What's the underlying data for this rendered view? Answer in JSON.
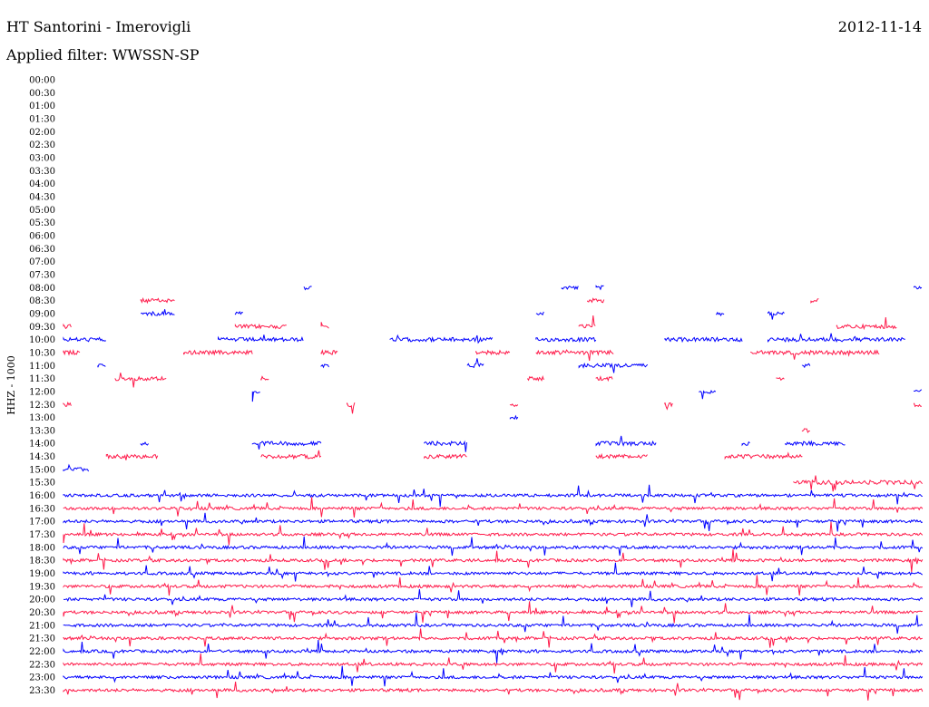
{
  "header": {
    "station": "HT Santorini - Imerovigli",
    "date": "2012-11-14",
    "filter_text": "Applied filter: WWSSN-SP"
  },
  "chart_data": {
    "type": "helicorder",
    "title": "HT Santorini - Imerovigli",
    "date": "2012-11-14",
    "filter": "WWSSN-SP",
    "ylabel": "HHZ - 1000",
    "colors": [
      "#0000ff",
      "#ff1a4a"
    ],
    "rows": [
      {
        "label": "00:00",
        "active": false
      },
      {
        "label": "00:30",
        "active": false
      },
      {
        "label": "01:00",
        "active": false
      },
      {
        "label": "01:30",
        "active": false
      },
      {
        "label": "02:00",
        "active": false
      },
      {
        "label": "02:30",
        "active": false
      },
      {
        "label": "03:00",
        "active": false
      },
      {
        "label": "03:30",
        "active": false
      },
      {
        "label": "04:00",
        "active": false
      },
      {
        "label": "04:30",
        "active": false
      },
      {
        "label": "05:00",
        "active": false
      },
      {
        "label": "05:30",
        "active": false
      },
      {
        "label": "06:00",
        "active": false
      },
      {
        "label": "06:30",
        "active": false
      },
      {
        "label": "07:00",
        "active": false
      },
      {
        "label": "07:30",
        "active": false
      },
      {
        "label": "08:00",
        "active": "sparse",
        "segments": [
          [
            0.28,
            0.29
          ],
          [
            0.58,
            0.6
          ],
          [
            0.62,
            0.63
          ],
          [
            0.99,
            1.0
          ]
        ]
      },
      {
        "label": "08:30",
        "active": "sparse",
        "segments": [
          [
            0.09,
            0.13
          ],
          [
            0.61,
            0.63
          ],
          [
            0.87,
            0.88
          ]
        ]
      },
      {
        "label": "09:00",
        "active": "sparse",
        "segments": [
          [
            0.09,
            0.13
          ],
          [
            0.2,
            0.21
          ],
          [
            0.55,
            0.56
          ],
          [
            0.76,
            0.77
          ],
          [
            0.82,
            0.84
          ]
        ]
      },
      {
        "label": "09:30",
        "active": "sparse",
        "segments": [
          [
            0.0,
            0.01
          ],
          [
            0.2,
            0.26
          ],
          [
            0.3,
            0.31
          ],
          [
            0.6,
            0.62
          ],
          [
            0.9,
            0.97
          ]
        ]
      },
      {
        "label": "10:00",
        "active": "sparse",
        "segments": [
          [
            0.0,
            0.05
          ],
          [
            0.18,
            0.28
          ],
          [
            0.38,
            0.5
          ],
          [
            0.55,
            0.62
          ],
          [
            0.7,
            0.79
          ],
          [
            0.82,
            0.98
          ]
        ]
      },
      {
        "label": "10:30",
        "active": "sparse",
        "segments": [
          [
            0.0,
            0.02
          ],
          [
            0.14,
            0.22
          ],
          [
            0.3,
            0.32
          ],
          [
            0.48,
            0.52
          ],
          [
            0.55,
            0.64
          ],
          [
            0.8,
            0.95
          ]
        ]
      },
      {
        "label": "11:00",
        "active": "sparse",
        "segments": [
          [
            0.04,
            0.05
          ],
          [
            0.3,
            0.31
          ],
          [
            0.47,
            0.49
          ],
          [
            0.6,
            0.68
          ],
          [
            0.86,
            0.87
          ]
        ]
      },
      {
        "label": "11:30",
        "active": "sparse",
        "segments": [
          [
            0.06,
            0.12
          ],
          [
            0.23,
            0.24
          ],
          [
            0.54,
            0.56
          ],
          [
            0.62,
            0.64
          ],
          [
            0.83,
            0.84
          ]
        ]
      },
      {
        "label": "12:00",
        "active": "sparse",
        "segments": [
          [
            0.22,
            0.23
          ],
          [
            0.74,
            0.76
          ],
          [
            0.99,
            1.0
          ]
        ]
      },
      {
        "label": "12:30",
        "active": "sparse",
        "segments": [
          [
            0.0,
            0.01
          ],
          [
            0.33,
            0.34
          ],
          [
            0.52,
            0.53
          ],
          [
            0.7,
            0.71
          ],
          [
            0.99,
            1.0
          ]
        ]
      },
      {
        "label": "13:00",
        "active": "sparse",
        "segments": [
          [
            0.52,
            0.53
          ]
        ]
      },
      {
        "label": "13:30",
        "active": "sparse",
        "segments": [
          [
            0.86,
            0.87
          ]
        ]
      },
      {
        "label": "14:00",
        "active": "sparse",
        "segments": [
          [
            0.09,
            0.1
          ],
          [
            0.22,
            0.3
          ],
          [
            0.42,
            0.47
          ],
          [
            0.62,
            0.69
          ],
          [
            0.79,
            0.8
          ],
          [
            0.84,
            0.91
          ]
        ]
      },
      {
        "label": "14:30",
        "active": "sparse",
        "segments": [
          [
            0.05,
            0.11
          ],
          [
            0.23,
            0.3
          ],
          [
            0.42,
            0.47
          ],
          [
            0.62,
            0.68
          ],
          [
            0.77,
            0.86
          ]
        ]
      },
      {
        "label": "15:00",
        "active": "sparse",
        "segments": [
          [
            0.0,
            0.03
          ]
        ]
      },
      {
        "label": "15:30",
        "active": "sparse",
        "segments": [
          [
            0.85,
            1.0
          ]
        ]
      },
      {
        "label": "16:00",
        "active": true
      },
      {
        "label": "16:30",
        "active": true
      },
      {
        "label": "17:00",
        "active": true
      },
      {
        "label": "17:30",
        "active": true
      },
      {
        "label": "18:00",
        "active": true
      },
      {
        "label": "18:30",
        "active": true
      },
      {
        "label": "19:00",
        "active": true
      },
      {
        "label": "19:30",
        "active": true
      },
      {
        "label": "20:00",
        "active": true
      },
      {
        "label": "20:30",
        "active": true
      },
      {
        "label": "21:00",
        "active": true
      },
      {
        "label": "21:30",
        "active": true
      },
      {
        "label": "22:00",
        "active": true
      },
      {
        "label": "22:30",
        "active": true
      },
      {
        "label": "23:00",
        "active": true
      },
      {
        "label": "23:30",
        "active": true
      }
    ]
  }
}
